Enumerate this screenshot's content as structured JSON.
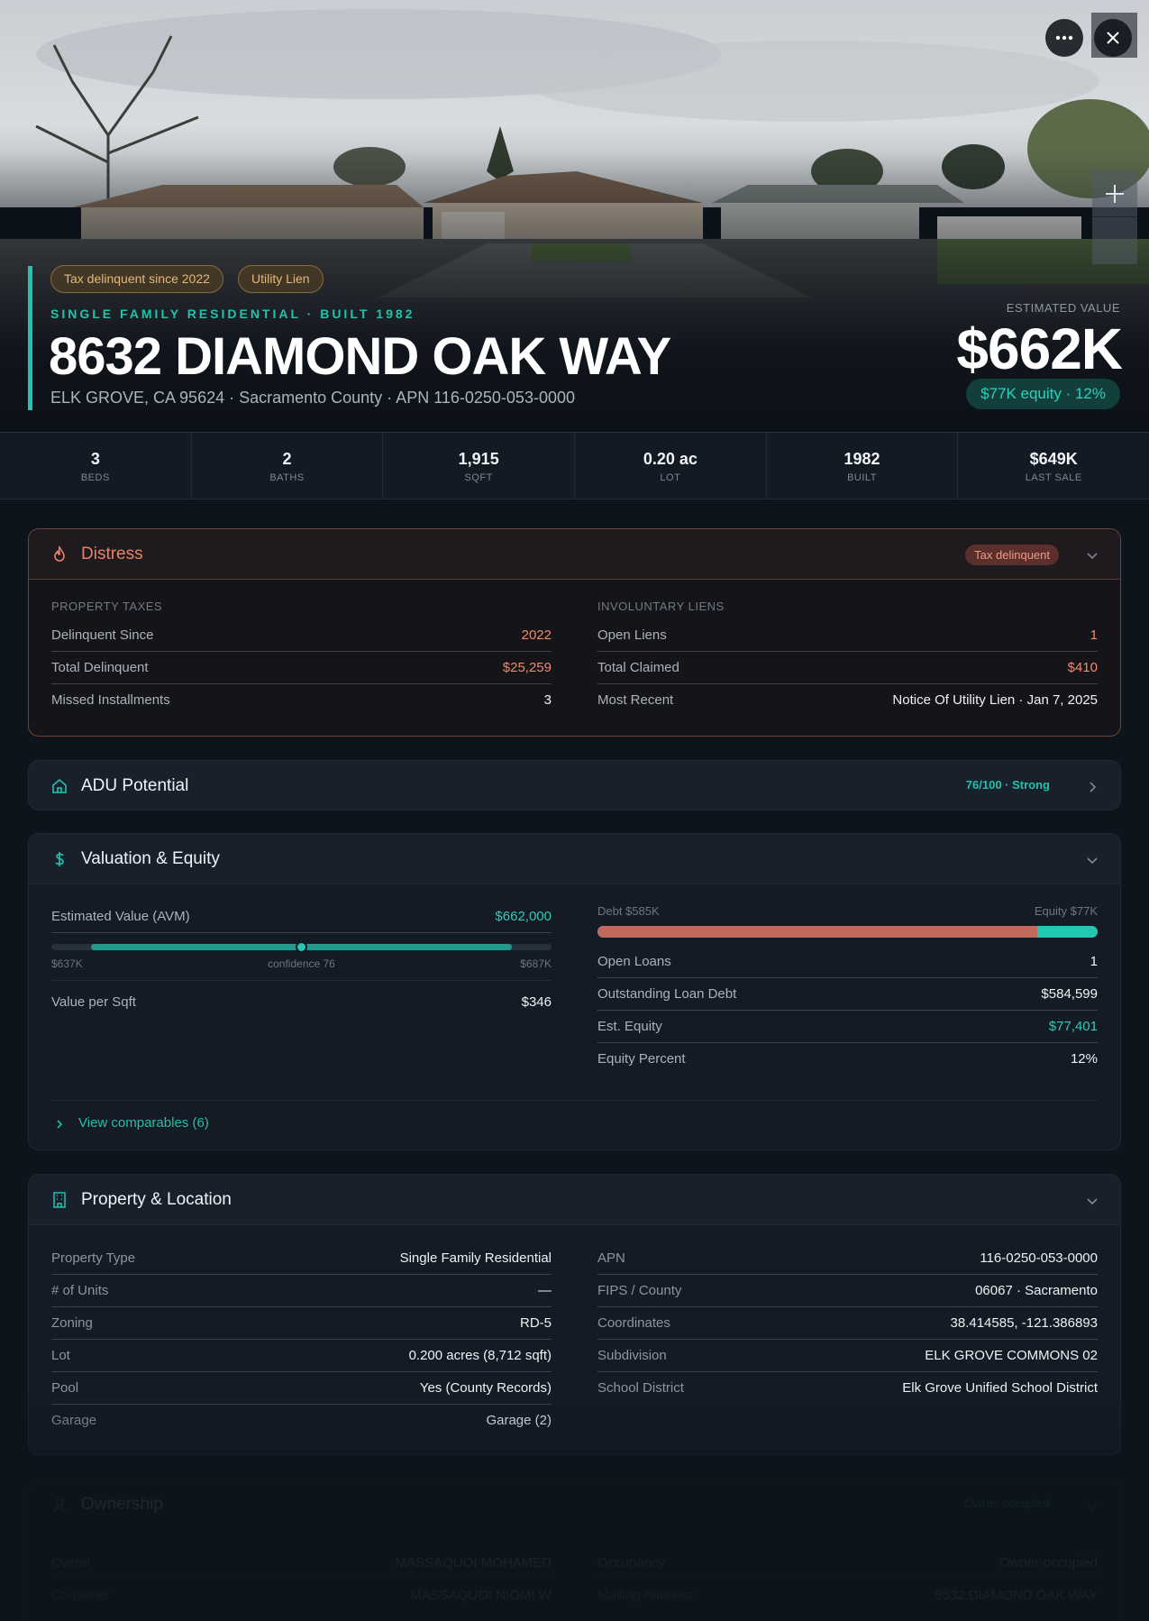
{
  "hero": {
    "tags": [
      "Tax delinquent since 2022",
      "Utility Lien"
    ],
    "kicker": "SINGLE FAMILY RESIDENTIAL · BUILT 1982",
    "address": "8632 DIAMOND OAK WAY",
    "subaddress": "ELK GROVE, CA 95624 · Sacramento County · APN 116-0250-053-0000",
    "estimated_label": "ESTIMATED VALUE",
    "estimated_value": "$662K",
    "equity_pill": "$77K equity · 12%",
    "more_icon": "more-horizontal-icon",
    "close_icon": "close-icon",
    "zoom_icon": "plus-icon"
  },
  "stats": [
    {
      "value": "3",
      "label": "BEDS"
    },
    {
      "value": "2",
      "label": "BATHS"
    },
    {
      "value": "1,915",
      "label": "SQFT"
    },
    {
      "value": "0.20 ac",
      "label": "LOT"
    },
    {
      "value": "1982",
      "label": "BUILT"
    },
    {
      "value": "$649K",
      "label": "LAST SALE"
    }
  ],
  "distress": {
    "title": "Distress",
    "badge": "Tax delinquent",
    "left_label": "PROPERTY TAXES",
    "left_rows": [
      {
        "k": "Delinquent Since",
        "v": "2022"
      },
      {
        "k": "Total Delinquent",
        "v": "$25,259"
      },
      {
        "k": "Missed Installments",
        "v": "3"
      }
    ],
    "right_label": "INVOLUNTARY LIENS",
    "right_rows": [
      {
        "k": "Open Liens",
        "v": "1"
      },
      {
        "k": "Total Claimed",
        "v": "$410"
      },
      {
        "k": "Most Recent",
        "v": "Notice Of Utility Lien · Jan 7, 2025"
      }
    ]
  },
  "adu": {
    "title": "ADU Potential",
    "score": "76/100 · Strong"
  },
  "valuation": {
    "title": "Valuation & Equity",
    "avm_label": "Estimated Value (AVM)",
    "avm_value": "$662,000",
    "range_low": "$637K",
    "range_mid": "confidence 76",
    "range_high": "$687K",
    "confidence": 76,
    "per_sqft_label": "Value per Sqft",
    "per_sqft_value": "$346",
    "debt_label": "Debt $585K",
    "equity_label": "Equity $77K",
    "debt_fraction": 0.88,
    "right_rows": [
      {
        "k": "Open Loans",
        "v": "1"
      },
      {
        "k": "Outstanding Loan Debt",
        "v": "$584,599"
      },
      {
        "k": "Est. Equity",
        "v": "$77,401"
      },
      {
        "k": "Equity Percent",
        "v": "12%"
      }
    ],
    "comparables": "View comparables (6)"
  },
  "property": {
    "title": "Property & Location",
    "left_rows": [
      {
        "k": "Property Type",
        "v": "Single Family Residential"
      },
      {
        "k": "# of Units",
        "v": "—"
      },
      {
        "k": "Zoning",
        "v": "RD-5"
      },
      {
        "k": "Lot",
        "v": "0.200 acres (8,712 sqft)"
      },
      {
        "k": "Pool",
        "v": "Yes (County Records)"
      },
      {
        "k": "Garage",
        "v": "Garage (2)"
      }
    ],
    "right_rows": [
      {
        "k": "APN",
        "v": "116-0250-053-0000"
      },
      {
        "k": "FIPS / County",
        "v": "06067 · Sacramento"
      },
      {
        "k": "Coordinates",
        "v": "38.414585, -121.386893"
      },
      {
        "k": "Subdivision",
        "v": "ELK GROVE COMMONS 02"
      },
      {
        "k": "School District",
        "v": "Elk Grove Unified School District"
      }
    ]
  },
  "ownership": {
    "title": "Ownership",
    "badge": "Owner-occupied",
    "left_rows": [
      {
        "k": "Owner",
        "v": "MASSAQUOI MOHAMED"
      },
      {
        "k": "Co-owner",
        "v": "MASSAQUOI NIOMI W"
      }
    ],
    "right_rows": [
      {
        "k": "Occupancy",
        "v": "Owner-occupied"
      },
      {
        "k": "Mailing Address",
        "v": "8632 DIAMOND OAK WAY"
      }
    ]
  },
  "colors": {
    "accent": "#20c4b1",
    "distress": "#e8826a",
    "tag": "#e5b878"
  }
}
